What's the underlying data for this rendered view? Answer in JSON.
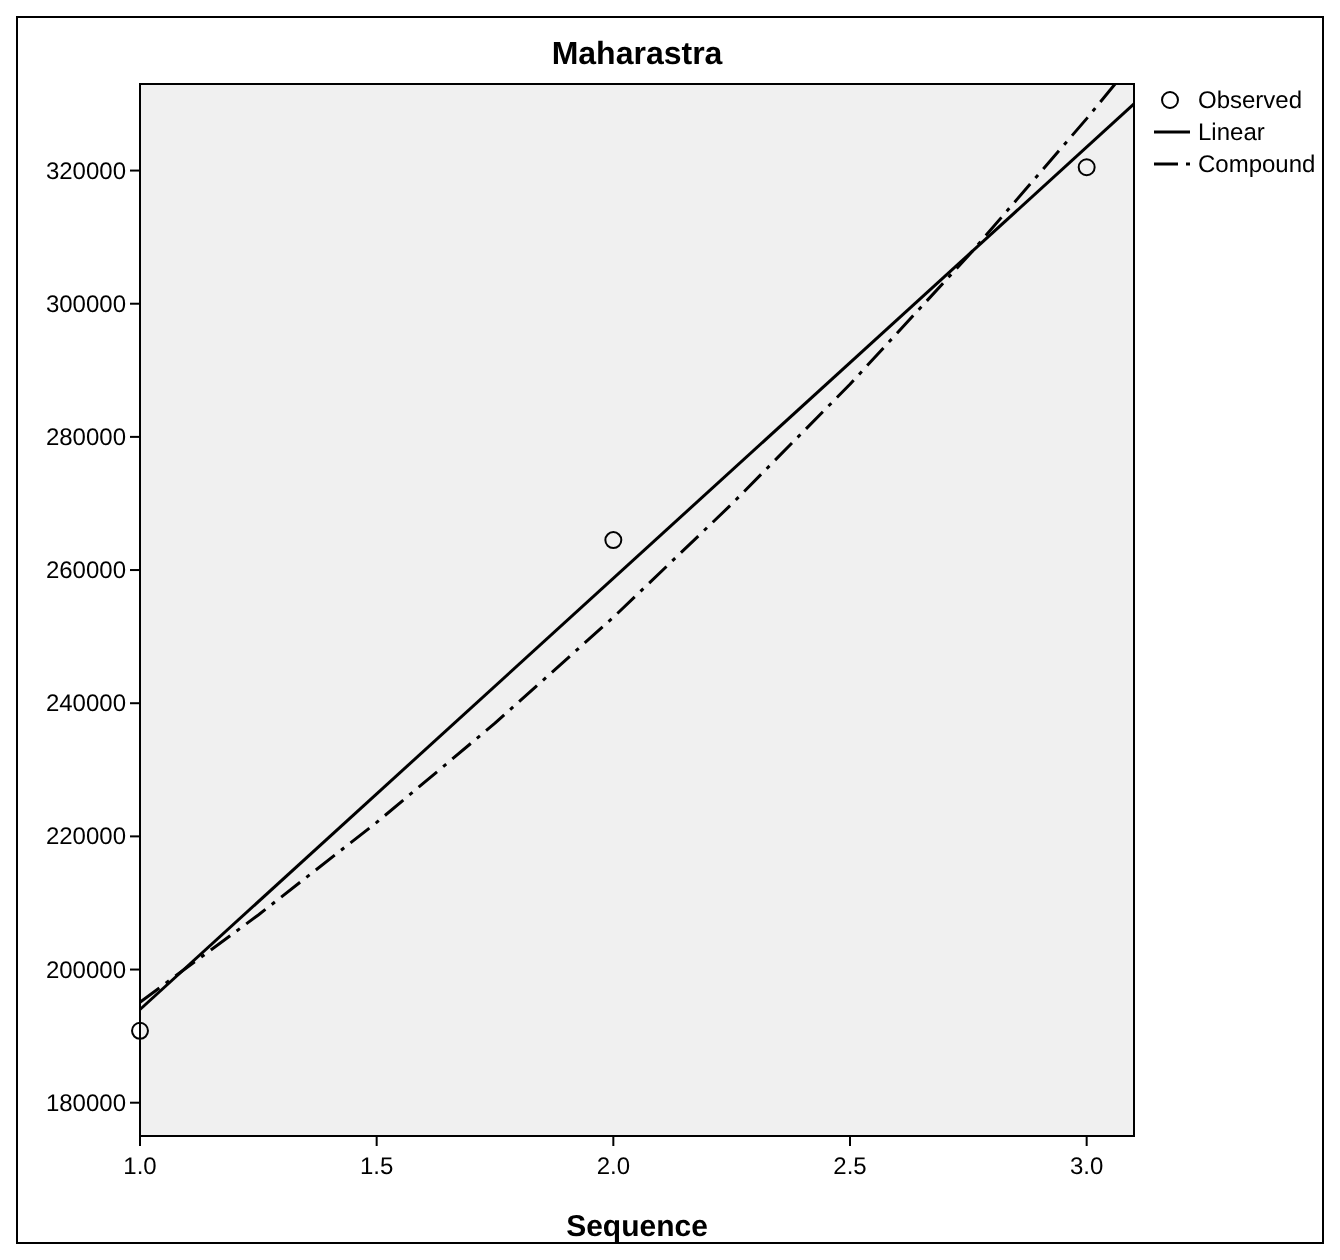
{
  "chart_data": {
    "type": "scatter",
    "title": "Maharastra",
    "xlabel": "Sequence",
    "xlim": [
      1,
      3.1
    ],
    "xticks": [
      {
        "value": 1,
        "label": "1.0"
      },
      {
        "value": 1.5,
        "label": "1.5"
      },
      {
        "value": 2,
        "label": "2.0"
      },
      {
        "value": 2.5,
        "label": "2.5"
      },
      {
        "value": 3,
        "label": "3.0"
      }
    ],
    "ylim": [
      175000,
      333000
    ],
    "yticks": [
      180000,
      200000,
      220000,
      240000,
      260000,
      280000,
      300000,
      320000
    ],
    "grid": false,
    "legend": "top right",
    "series": [
      {
        "name": "Observed",
        "marker": "circle",
        "color": "#000000",
        "x": [
          1,
          2,
          3
        ],
        "values": [
          190800,
          264500,
          320500
        ]
      },
      {
        "name": "Linear",
        "type": "line",
        "line_style": "solid",
        "color": "#000000",
        "x": [
          1,
          3.1
        ],
        "values": [
          194000,
          330000
        ]
      },
      {
        "name": "Compound",
        "type": "line",
        "line_style": "dashed",
        "color": "#000000",
        "x": [
          1,
          1.25,
          1.5,
          1.75,
          2,
          2.25,
          2.5,
          2.75,
          3,
          3.06
        ],
        "values": [
          195100,
          208200,
          222100,
          237000,
          252900,
          269900,
          287900,
          307200,
          327800,
          333000
        ]
      }
    ]
  }
}
